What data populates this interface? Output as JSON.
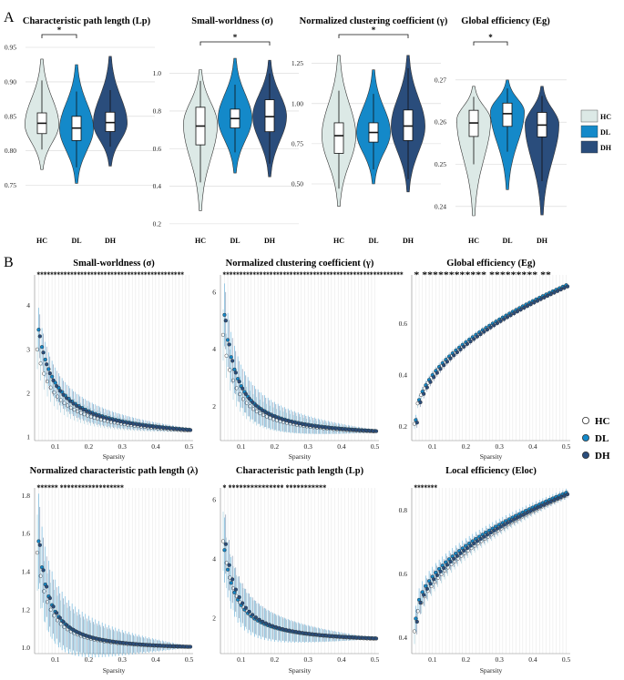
{
  "panel_labels": {
    "a": "A",
    "b": "B"
  },
  "colors": {
    "HC": "#dce9e6",
    "DL": "#1489c9",
    "DH": "#2a4d7c"
  },
  "legend_a": [
    "HC",
    "DL",
    "DH"
  ],
  "legend_b": [
    "HC",
    "DL",
    "DH"
  ],
  "chart_data": [
    {
      "type": "violin",
      "title": "Characteristic path length (Lp)",
      "categories": [
        "HC",
        "DL",
        "DH"
      ],
      "yticks": [
        "0.75",
        "0.80",
        "0.85",
        "0.90",
        "0.95"
      ],
      "ylim": [
        0.735,
        0.95
      ],
      "groups": [
        {
          "name": "HC",
          "min": 0.773,
          "max": 0.933,
          "q1": 0.825,
          "median": 0.84,
          "q3": 0.855,
          "wlo": 0.802,
          "whi": 0.902,
          "mode": 0.838
        },
        {
          "name": "DL",
          "min": 0.753,
          "max": 0.925,
          "q1": 0.815,
          "median": 0.833,
          "q3": 0.85,
          "wlo": 0.776,
          "whi": 0.886,
          "mode": 0.832
        },
        {
          "name": "DH",
          "min": 0.778,
          "max": 0.937,
          "q1": 0.828,
          "median": 0.841,
          "q3": 0.856,
          "wlo": 0.806,
          "whi": 0.888,
          "mode": 0.84
        }
      ],
      "significance": [
        {
          "from": "HC",
          "to": "DL",
          "label": "*"
        }
      ]
    },
    {
      "type": "violin",
      "title": "Small-worldness (σ)",
      "categories": [
        "HC",
        "DL",
        "DH"
      ],
      "yticks": [
        "0.2",
        "0.4",
        "0.6",
        "0.8",
        "1.0"
      ],
      "ylim": [
        0.18,
        1.1
      ],
      "groups": [
        {
          "name": "HC",
          "min": 0.27,
          "max": 1.02,
          "q1": 0.62,
          "median": 0.72,
          "q3": 0.82,
          "wlo": 0.42,
          "whi": 0.96,
          "mode": 0.73
        },
        {
          "name": "DL",
          "min": 0.47,
          "max": 1.08,
          "q1": 0.71,
          "median": 0.76,
          "q3": 0.81,
          "wlo": 0.58,
          "whi": 0.94,
          "mode": 0.76
        },
        {
          "name": "DH",
          "min": 0.45,
          "max": 1.07,
          "q1": 0.69,
          "median": 0.77,
          "q3": 0.86,
          "wlo": 0.52,
          "whi": 1.0,
          "mode": 0.77
        }
      ],
      "significance": [
        {
          "from": "HC",
          "to": "DH",
          "label": "*"
        }
      ]
    },
    {
      "type": "violin",
      "title": "Normalized clustering coefficient (γ)",
      "categories": [
        "HC",
        "DL",
        "DH"
      ],
      "yticks": [
        "0.50",
        "0.75",
        "1.00",
        "1.25"
      ],
      "ylim": [
        0.33,
        1.35
      ],
      "groups": [
        {
          "name": "HC",
          "min": 0.36,
          "max": 1.3,
          "q1": 0.69,
          "median": 0.8,
          "q3": 0.88,
          "wlo": 0.47,
          "whi": 1.08,
          "mode": 0.8
        },
        {
          "name": "DL",
          "min": 0.5,
          "max": 1.21,
          "q1": 0.76,
          "median": 0.82,
          "q3": 0.88,
          "wlo": 0.59,
          "whi": 1.06,
          "mode": 0.82
        },
        {
          "name": "DH",
          "min": 0.45,
          "max": 1.3,
          "q1": 0.77,
          "median": 0.86,
          "q3": 0.96,
          "wlo": 0.53,
          "whi": 1.22,
          "mode": 0.86
        }
      ],
      "significance": [
        {
          "from": "HC",
          "to": "DH",
          "label": "*"
        }
      ]
    },
    {
      "type": "violin",
      "title": "Global efficiency (Eg)",
      "categories": [
        "HC",
        "DL",
        "DH"
      ],
      "yticks": [
        "0.24",
        "0.25",
        "0.26",
        "0.27"
      ],
      "ylim": [
        0.235,
        0.276
      ],
      "groups": [
        {
          "name": "HC",
          "min": 0.2378,
          "max": 0.2685,
          "q1": 0.2566,
          "median": 0.2598,
          "q3": 0.2628,
          "wlo": 0.25,
          "whi": 0.266,
          "mode": 0.2605
        },
        {
          "name": "DL",
          "min": 0.244,
          "max": 0.27,
          "q1": 0.259,
          "median": 0.262,
          "q3": 0.2645,
          "wlo": 0.253,
          "whi": 0.268,
          "mode": 0.2625
        },
        {
          "name": "DH",
          "min": 0.238,
          "max": 0.2685,
          "q1": 0.2565,
          "median": 0.2593,
          "q3": 0.2623,
          "wlo": 0.246,
          "whi": 0.2662,
          "mode": 0.2595
        }
      ],
      "significance": [
        {
          "from": "HC",
          "to": "DL",
          "label": "*"
        }
      ]
    },
    {
      "type": "scatter-errorbar",
      "title": "Small-worldness (σ)",
      "xlabel": "Sparsity",
      "xlim": [
        0.038,
        0.512
      ],
      "ylim": [
        0.92,
        4.7
      ],
      "xticks": [
        "0.1",
        "0.2",
        "0.3",
        "0.4",
        "0.5"
      ],
      "yticks": [
        "1",
        "2",
        "3",
        "4"
      ],
      "sparsity": {
        "start": 0.05,
        "end": 0.5,
        "step": 0.01
      },
      "stars": "********************************************",
      "series": [
        {
          "name": "HC",
          "curve": "power",
          "start_value": 3.0,
          "end_value": 1.15,
          "exponent": 0.9,
          "err_start": 0.45,
          "err_end": 0.04
        },
        {
          "name": "DL",
          "curve": "power",
          "start_value": 3.45,
          "end_value": 1.17,
          "exponent": 0.9,
          "err_start": 0.5,
          "err_end": 0.04
        },
        {
          "name": "DH",
          "curve": "power",
          "start_value": 3.3,
          "end_value": 1.16,
          "exponent": 0.9,
          "err_start": 0.5,
          "err_end": 0.04
        }
      ]
    },
    {
      "type": "scatter-errorbar",
      "title": "Normalized clustering coefficient (γ)",
      "xlabel": "Sparsity",
      "xlim": [
        0.038,
        0.512
      ],
      "ylim": [
        0.8,
        6.6
      ],
      "xticks": [
        "0.1",
        "0.2",
        "0.3",
        "0.4",
        "0.5"
      ],
      "yticks": [
        "2",
        "4",
        "6"
      ],
      "sparsity": {
        "start": 0.05,
        "end": 0.5,
        "step": 0.01
      },
      "stars": "******************************************************",
      "series": [
        {
          "name": "HC",
          "curve": "power",
          "start_value": 4.5,
          "end_value": 1.12,
          "exponent": 1.25,
          "err_start": 0.9,
          "err_end": 0.05
        },
        {
          "name": "DL",
          "curve": "power",
          "start_value": 5.2,
          "end_value": 1.14,
          "exponent": 1.25,
          "err_start": 1.1,
          "err_end": 0.05
        },
        {
          "name": "DH",
          "curve": "power",
          "start_value": 5.0,
          "end_value": 1.13,
          "exponent": 1.25,
          "err_start": 1.0,
          "err_end": 0.05
        }
      ]
    },
    {
      "type": "scatter-errorbar",
      "title": "Global efficiency (Eg)",
      "xlabel": "Sparsity",
      "xlim": [
        0.038,
        0.512
      ],
      "ylim": [
        0.145,
        0.79
      ],
      "xticks": [
        "0.1",
        "0.2",
        "0.3",
        "0.4",
        "0.5"
      ],
      "yticks": [
        "0.2",
        "0.4",
        "0.6"
      ],
      "sparsity": {
        "start": 0.05,
        "end": 0.5,
        "step": 0.01
      },
      "stars": "*           ************   *********   **",
      "series": [
        {
          "name": "HC",
          "curve": "sqrt",
          "start_value": 0.21,
          "end_value": 0.745,
          "err_start": 0.02,
          "err_end": 0.008
        },
        {
          "name": "DL",
          "curve": "sqrt",
          "start_value": 0.225,
          "end_value": 0.75,
          "err_start": 0.02,
          "err_end": 0.008
        },
        {
          "name": "DH",
          "curve": "sqrt",
          "start_value": 0.215,
          "end_value": 0.745,
          "err_start": 0.02,
          "err_end": 0.008
        }
      ]
    },
    {
      "type": "scatter-errorbar",
      "title": "Normalized characteristic path length (λ)",
      "xlabel": "Sparsity",
      "xlim": [
        0.038,
        0.512
      ],
      "ylim": [
        0.97,
        1.84
      ],
      "xticks": [
        "0.1",
        "0.2",
        "0.3",
        "0.4",
        "0.5"
      ],
      "yticks": [
        "1.0",
        "1.2",
        "1.4",
        "1.6",
        "1.8"
      ],
      "sparsity": {
        "start": 0.05,
        "end": 0.5,
        "step": 0.01
      },
      "stars": "******  ******************",
      "series": [
        {
          "name": "HC",
          "curve": "power",
          "start_value": 1.5,
          "end_value": 1.005,
          "exponent": 1.5,
          "err_start": 0.2,
          "err_end": 0.005
        },
        {
          "name": "DL",
          "curve": "power",
          "start_value": 1.56,
          "end_value": 1.006,
          "exponent": 1.5,
          "err_start": 0.25,
          "err_end": 0.005
        },
        {
          "name": "DH",
          "curve": "power",
          "start_value": 1.54,
          "end_value": 1.006,
          "exponent": 1.5,
          "err_start": 0.2,
          "err_end": 0.005
        }
      ]
    },
    {
      "type": "scatter-errorbar",
      "title": "Characteristic path length (Lp)",
      "xlabel": "Sparsity",
      "xlim": [
        0.038,
        0.512
      ],
      "ylim": [
        0.8,
        6.4
      ],
      "xticks": [
        "0.1",
        "0.2",
        "0.3",
        "0.4",
        "0.5"
      ],
      "yticks": [
        "2",
        "4",
        "6"
      ],
      "sparsity": {
        "start": 0.05,
        "end": 0.5,
        "step": 0.01
      },
      "stars": "*  ***************  ***********",
      "series": [
        {
          "name": "HC",
          "curve": "power",
          "start_value": 4.6,
          "end_value": 1.3,
          "exponent": 1.3,
          "err_start": 1.0,
          "err_end": 0.02
        },
        {
          "name": "DL",
          "curve": "power",
          "start_value": 4.3,
          "end_value": 1.32,
          "exponent": 1.3,
          "err_start": 1.1,
          "err_end": 0.02
        },
        {
          "name": "DH",
          "curve": "power",
          "start_value": 4.5,
          "end_value": 1.31,
          "exponent": 1.3,
          "err_start": 1.0,
          "err_end": 0.02
        }
      ]
    },
    {
      "type": "scatter-errorbar",
      "title": "Local efficiency (Eloc)",
      "xlabel": "Sparsity",
      "xlim": [
        0.038,
        0.512
      ],
      "ylim": [
        0.35,
        0.87
      ],
      "xticks": [
        "0.1",
        "0.2",
        "0.3",
        "0.4",
        "0.5"
      ],
      "yticks": [
        "0.4",
        "0.6",
        "0.8"
      ],
      "sparsity": {
        "start": 0.05,
        "end": 0.5,
        "step": 0.01
      },
      "stars": "*******",
      "series": [
        {
          "name": "HC",
          "curve": "sqrt",
          "start_value": 0.42,
          "end_value": 0.845,
          "err_start": 0.04,
          "err_end": 0.012
        },
        {
          "name": "DL",
          "curve": "sqrt",
          "start_value": 0.46,
          "end_value": 0.855,
          "err_start": 0.04,
          "err_end": 0.012
        },
        {
          "name": "DH",
          "curve": "sqrt",
          "start_value": 0.45,
          "end_value": 0.85,
          "err_start": 0.04,
          "err_end": 0.012
        }
      ]
    }
  ]
}
